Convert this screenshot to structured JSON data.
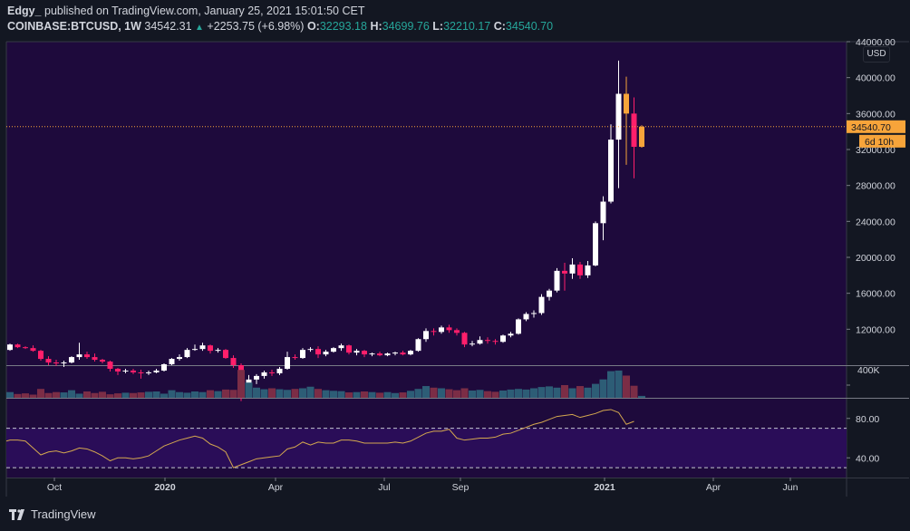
{
  "header": {
    "author": "Edgy_",
    "published_text": "published on TradingView.com, January 25, 2021 15:01:50 CET"
  },
  "symbol_line": {
    "symbol": "COINBASE:BTCUSD, 1W",
    "last": "34542.31",
    "change": "+2253.75 (+6.98%)",
    "o_label": "O:",
    "o": "32293.18",
    "h_label": "H:",
    "h": "34699.76",
    "l_label": "L:",
    "l": "32210.17",
    "c_label": "C:",
    "c": "34540.70"
  },
  "footer": {
    "brand": "TradingView"
  },
  "currency_button": "USD",
  "colors": {
    "background": "#131722",
    "pane": "#1e0a3c",
    "candle_up": "#ffffff",
    "candle_down": "#ff1f6b",
    "candle_amber": "#f7a43a",
    "volume_up": "#2d5d76",
    "volume_down": "#7b2d46",
    "rsi_line": "#d4a84f",
    "rsi_band": "#2a0d58",
    "price_line": "#f7a43a"
  },
  "chart_data": [
    {
      "type": "candlestick",
      "ylim": [
        8000,
        44000
      ],
      "yticks": [
        "12000.00",
        "16000.00",
        "20000.00",
        "24000.00",
        "28000.00",
        "32000.00",
        "36000.00",
        "40000.00",
        "44000.00"
      ],
      "xticks": [
        "Oct",
        "2020",
        "Apr",
        "Jul",
        "Sep",
        "2021",
        "Apr",
        "Jun"
      ],
      "last_price_label": "34540.70",
      "countdown_label": "6d 10h",
      "candles": [
        {
          "o": 9700,
          "h": 10400,
          "l": 9600,
          "c": 10300
        },
        {
          "o": 10300,
          "h": 10400,
          "l": 9900,
          "c": 10000
        },
        {
          "o": 10000,
          "h": 10100,
          "l": 9800,
          "c": 9900
        },
        {
          "o": 9900,
          "h": 10200,
          "l": 9500,
          "c": 9600
        },
        {
          "o": 9600,
          "h": 9700,
          "l": 8500,
          "c": 8700
        },
        {
          "o": 8700,
          "h": 9000,
          "l": 8000,
          "c": 8300
        },
        {
          "o": 8300,
          "h": 8600,
          "l": 7900,
          "c": 8200
        },
        {
          "o": 8200,
          "h": 8500,
          "l": 7800,
          "c": 8300
        },
        {
          "o": 8300,
          "h": 9000,
          "l": 8200,
          "c": 8900
        },
        {
          "o": 8900,
          "h": 10500,
          "l": 8600,
          "c": 9200
        },
        {
          "o": 9200,
          "h": 9500,
          "l": 8700,
          "c": 8900
        },
        {
          "o": 8900,
          "h": 9300,
          "l": 8400,
          "c": 8600
        },
        {
          "o": 8600,
          "h": 8700,
          "l": 8200,
          "c": 8400
        },
        {
          "o": 8400,
          "h": 8500,
          "l": 7300,
          "c": 7600
        },
        {
          "o": 7600,
          "h": 7700,
          "l": 6900,
          "c": 7300
        },
        {
          "o": 7300,
          "h": 7600,
          "l": 7100,
          "c": 7400
        },
        {
          "o": 7400,
          "h": 7600,
          "l": 7000,
          "c": 7200
        },
        {
          "o": 7200,
          "h": 7500,
          "l": 6500,
          "c": 7100
        },
        {
          "o": 7100,
          "h": 7400,
          "l": 6900,
          "c": 7200
        },
        {
          "o": 7200,
          "h": 7600,
          "l": 7100,
          "c": 7400
        },
        {
          "o": 7400,
          "h": 8200,
          "l": 7300,
          "c": 8100
        },
        {
          "o": 8100,
          "h": 8800,
          "l": 8000,
          "c": 8700
        },
        {
          "o": 8700,
          "h": 9200,
          "l": 8500,
          "c": 8900
        },
        {
          "o": 8900,
          "h": 9900,
          "l": 8800,
          "c": 9700
        },
        {
          "o": 9700,
          "h": 10300,
          "l": 9600,
          "c": 9800
        },
        {
          "o": 9800,
          "h": 10500,
          "l": 9600,
          "c": 10200
        },
        {
          "o": 10200,
          "h": 10300,
          "l": 9300,
          "c": 9600
        },
        {
          "o": 9600,
          "h": 9900,
          "l": 9400,
          "c": 9700
        },
        {
          "o": 9700,
          "h": 9800,
          "l": 8700,
          "c": 8800
        },
        {
          "o": 8800,
          "h": 9100,
          "l": 7700,
          "c": 8000
        },
        {
          "o": 8000,
          "h": 8200,
          "l": 4000,
          "c": 5400
        },
        {
          "o": 5400,
          "h": 6900,
          "l": 5000,
          "c": 6400
        },
        {
          "o": 6400,
          "h": 7000,
          "l": 5900,
          "c": 6800
        },
        {
          "o": 6800,
          "h": 7400,
          "l": 6500,
          "c": 7200
        },
        {
          "o": 7200,
          "h": 7500,
          "l": 6800,
          "c": 7100
        },
        {
          "o": 7100,
          "h": 7800,
          "l": 6900,
          "c": 7600
        },
        {
          "o": 7600,
          "h": 9500,
          "l": 7500,
          "c": 8900
        },
        {
          "o": 8900,
          "h": 9200,
          "l": 8600,
          "c": 8800
        },
        {
          "o": 8800,
          "h": 9900,
          "l": 8700,
          "c": 9700
        },
        {
          "o": 9700,
          "h": 10000,
          "l": 9500,
          "c": 9800
        },
        {
          "o": 9800,
          "h": 10100,
          "l": 8800,
          "c": 9200
        },
        {
          "o": 9200,
          "h": 9700,
          "l": 9000,
          "c": 9500
        },
        {
          "o": 9500,
          "h": 10000,
          "l": 9400,
          "c": 9900
        },
        {
          "o": 9900,
          "h": 10400,
          "l": 9600,
          "c": 10200
        },
        {
          "o": 10200,
          "h": 10300,
          "l": 9200,
          "c": 9400
        },
        {
          "o": 9400,
          "h": 9800,
          "l": 9100,
          "c": 9600
        },
        {
          "o": 9600,
          "h": 9700,
          "l": 8900,
          "c": 9200
        },
        {
          "o": 9200,
          "h": 9400,
          "l": 9000,
          "c": 9300
        },
        {
          "o": 9300,
          "h": 9500,
          "l": 9000,
          "c": 9100
        },
        {
          "o": 9100,
          "h": 9400,
          "l": 9000,
          "c": 9300
        },
        {
          "o": 9300,
          "h": 9500,
          "l": 9100,
          "c": 9400
        },
        {
          "o": 9400,
          "h": 9600,
          "l": 9100,
          "c": 9200
        },
        {
          "o": 9200,
          "h": 9700,
          "l": 9100,
          "c": 9600
        },
        {
          "o": 9600,
          "h": 11000,
          "l": 9500,
          "c": 10900
        },
        {
          "o": 10900,
          "h": 12100,
          "l": 10600,
          "c": 11800
        },
        {
          "o": 11800,
          "h": 12100,
          "l": 11300,
          "c": 11700
        },
        {
          "o": 11700,
          "h": 12400,
          "l": 11500,
          "c": 12200
        },
        {
          "o": 12200,
          "h": 12500,
          "l": 11600,
          "c": 11900
        },
        {
          "o": 11900,
          "h": 12100,
          "l": 11300,
          "c": 11600
        },
        {
          "o": 11600,
          "h": 11700,
          "l": 10000,
          "c": 10300
        },
        {
          "o": 10300,
          "h": 10700,
          "l": 10100,
          "c": 10400
        },
        {
          "o": 10400,
          "h": 11200,
          "l": 10300,
          "c": 10800
        },
        {
          "o": 10800,
          "h": 11100,
          "l": 10400,
          "c": 10700
        },
        {
          "o": 10700,
          "h": 10900,
          "l": 10300,
          "c": 10600
        },
        {
          "o": 10600,
          "h": 11400,
          "l": 10500,
          "c": 11300
        },
        {
          "o": 11300,
          "h": 11700,
          "l": 11100,
          "c": 11500
        },
        {
          "o": 11500,
          "h": 13200,
          "l": 11400,
          "c": 13100
        },
        {
          "o": 13100,
          "h": 13900,
          "l": 12900,
          "c": 13700
        },
        {
          "o": 13700,
          "h": 14100,
          "l": 13300,
          "c": 13800
        },
        {
          "o": 13800,
          "h": 15900,
          "l": 13600,
          "c": 15600
        },
        {
          "o": 15600,
          "h": 16500,
          "l": 15200,
          "c": 16300
        },
        {
          "o": 16300,
          "h": 18800,
          "l": 16100,
          "c": 18500
        },
        {
          "o": 18500,
          "h": 19400,
          "l": 16300,
          "c": 18200
        },
        {
          "o": 18200,
          "h": 19900,
          "l": 17600,
          "c": 19200
        },
        {
          "o": 19200,
          "h": 19500,
          "l": 17600,
          "c": 18000
        },
        {
          "o": 18000,
          "h": 19600,
          "l": 17700,
          "c": 19100
        },
        {
          "o": 19100,
          "h": 24000,
          "l": 19000,
          "c": 23800
        },
        {
          "o": 23800,
          "h": 26800,
          "l": 21900,
          "c": 26200
        },
        {
          "o": 26200,
          "h": 34800,
          "l": 26000,
          "c": 33100
        },
        {
          "o": 33100,
          "h": 41900,
          "l": 27700,
          "c": 38200
        },
        {
          "o": 38200,
          "h": 40100,
          "l": 30300,
          "c": 36000
        },
        {
          "o": 36000,
          "h": 37800,
          "l": 28800,
          "c": 32300
        },
        {
          "o": 32300,
          "h": 34700,
          "l": 32200,
          "c": 34540
        }
      ]
    },
    {
      "type": "bar",
      "name": "Volume",
      "ytick": "400K",
      "values": [
        180,
        120,
        140,
        100,
        280,
        150,
        180,
        170,
        240,
        130,
        200,
        150,
        190,
        110,
        140,
        160,
        150,
        170,
        190,
        200,
        130,
        240,
        180,
        160,
        200,
        180,
        240,
        210,
        260,
        250,
        880,
        480,
        320,
        270,
        300,
        270,
        250,
        280,
        300,
        350,
        280,
        240,
        220,
        210,
        170,
        180,
        200,
        180,
        160,
        180,
        150,
        170,
        220,
        280,
        370,
        320,
        300,
        270,
        240,
        300,
        230,
        250,
        210,
        190,
        230,
        260,
        280,
        260,
        300,
        340,
        360,
        320,
        400,
        300,
        370,
        320,
        440,
        580,
        840,
        860,
        700,
        380,
        60
      ]
    },
    {
      "type": "line",
      "name": "RSI",
      "yticks": [
        "40.00",
        "80.00"
      ],
      "bands": [
        30,
        70
      ],
      "ylim": [
        20,
        100
      ],
      "values": [
        57,
        58,
        58,
        57,
        50,
        43,
        46,
        47,
        45,
        47,
        50,
        49,
        46,
        42,
        37,
        40,
        40,
        39,
        40,
        42,
        47,
        52,
        55,
        58,
        60,
        62,
        60,
        54,
        51,
        46,
        30,
        33,
        36,
        39,
        40,
        41,
        42,
        49,
        51,
        56,
        53,
        56,
        55,
        55,
        58,
        58,
        57,
        55,
        55,
        55,
        55,
        56,
        55,
        57,
        61,
        65,
        67,
        67,
        69,
        60,
        58,
        59,
        60,
        60,
        61,
        64,
        65,
        68,
        71,
        74,
        76,
        79,
        82,
        83,
        84,
        81,
        83,
        85,
        88,
        89,
        86,
        74,
        77
      ]
    }
  ]
}
